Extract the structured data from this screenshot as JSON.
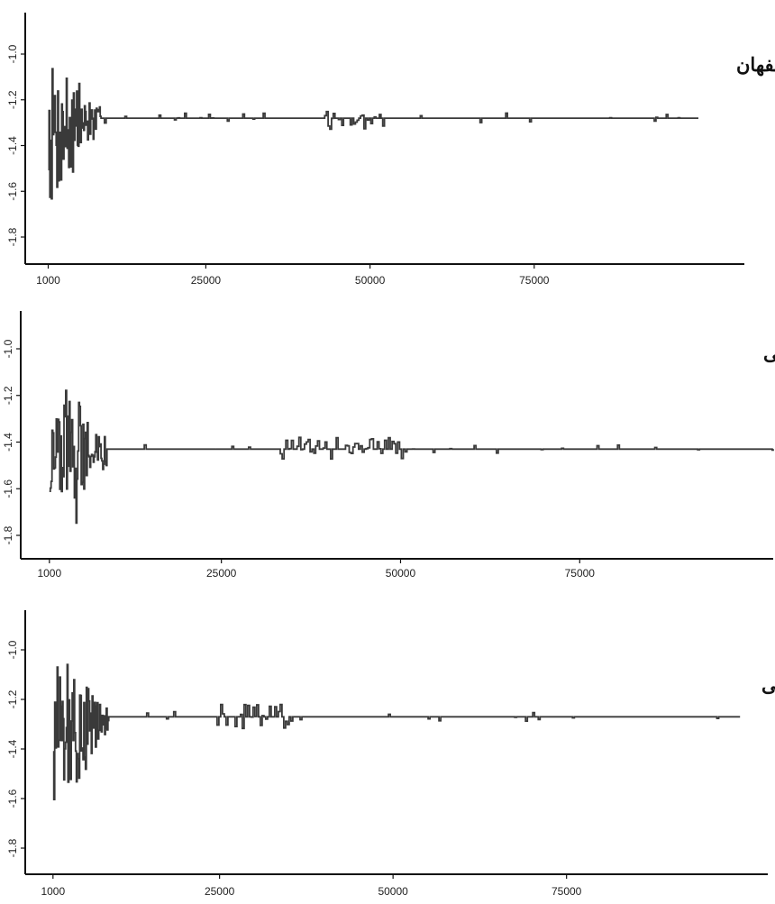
{
  "chart_data": [
    {
      "type": "line",
      "title": "اصفهان",
      "xlabel": "",
      "ylabel": "",
      "xlim": [
        -2500,
        107000
      ],
      "ylim": [
        -1.9,
        -0.8
      ],
      "xticks": [
        1000,
        25000,
        50000,
        75000
      ],
      "xtick_labels": [
        "1000",
        "25000",
        "50000",
        "75000"
      ],
      "yticks": [
        -1.0,
        -1.2,
        -1.4,
        -1.6,
        -1.8
      ],
      "ytick_labels": [
        "-1.0",
        "-1.2",
        "-1.4",
        "-1.6",
        "-1.8"
      ],
      "x_end": 100000,
      "converged_value": -1.28,
      "burst_regions": [
        [
          43000,
          52000
        ]
      ],
      "grid": false
    },
    {
      "type": "line",
      "title": "خراسان جنوبی",
      "xlabel": "",
      "ylabel": "",
      "xlim": [
        -3000,
        102000
      ],
      "ylim": [
        -1.9,
        -0.8
      ],
      "xticks": [
        1000,
        25000,
        50000,
        75000
      ],
      "xtick_labels": [
        "1000",
        "25000",
        "50000",
        "75000"
      ],
      "yticks": [
        -1.0,
        -1.2,
        -1.4,
        -1.6,
        -1.8
      ],
      "ytick_labels": [
        "-1.0",
        "-1.2",
        "-1.4",
        "-1.6",
        "-1.8"
      ],
      "x_end": 102000,
      "converged_value": -1.43,
      "burst_regions": [
        [
          33000,
          51000
        ]
      ],
      "grid": false
    },
    {
      "type": "line",
      "title": "آذربایجان شرقی",
      "xlabel": "",
      "ylabel": "",
      "xlim": [
        -3000,
        104000
      ],
      "ylim": [
        -1.9,
        -0.8
      ],
      "xticks": [
        1000,
        25000,
        50000,
        75000
      ],
      "xtick_labels": [
        "1000",
        "25000",
        "50000",
        "75000"
      ],
      "yticks": [
        -1.0,
        -1.2,
        -1.4,
        -1.6,
        -1.8
      ],
      "ytick_labels": [
        "-1.0",
        "-1.2",
        "-1.4",
        "-1.6",
        "-1.8"
      ],
      "x_end": 100000,
      "converged_value": -1.27,
      "burst_regions": [
        [
          24000,
          36000
        ]
      ],
      "grid": false
    }
  ]
}
